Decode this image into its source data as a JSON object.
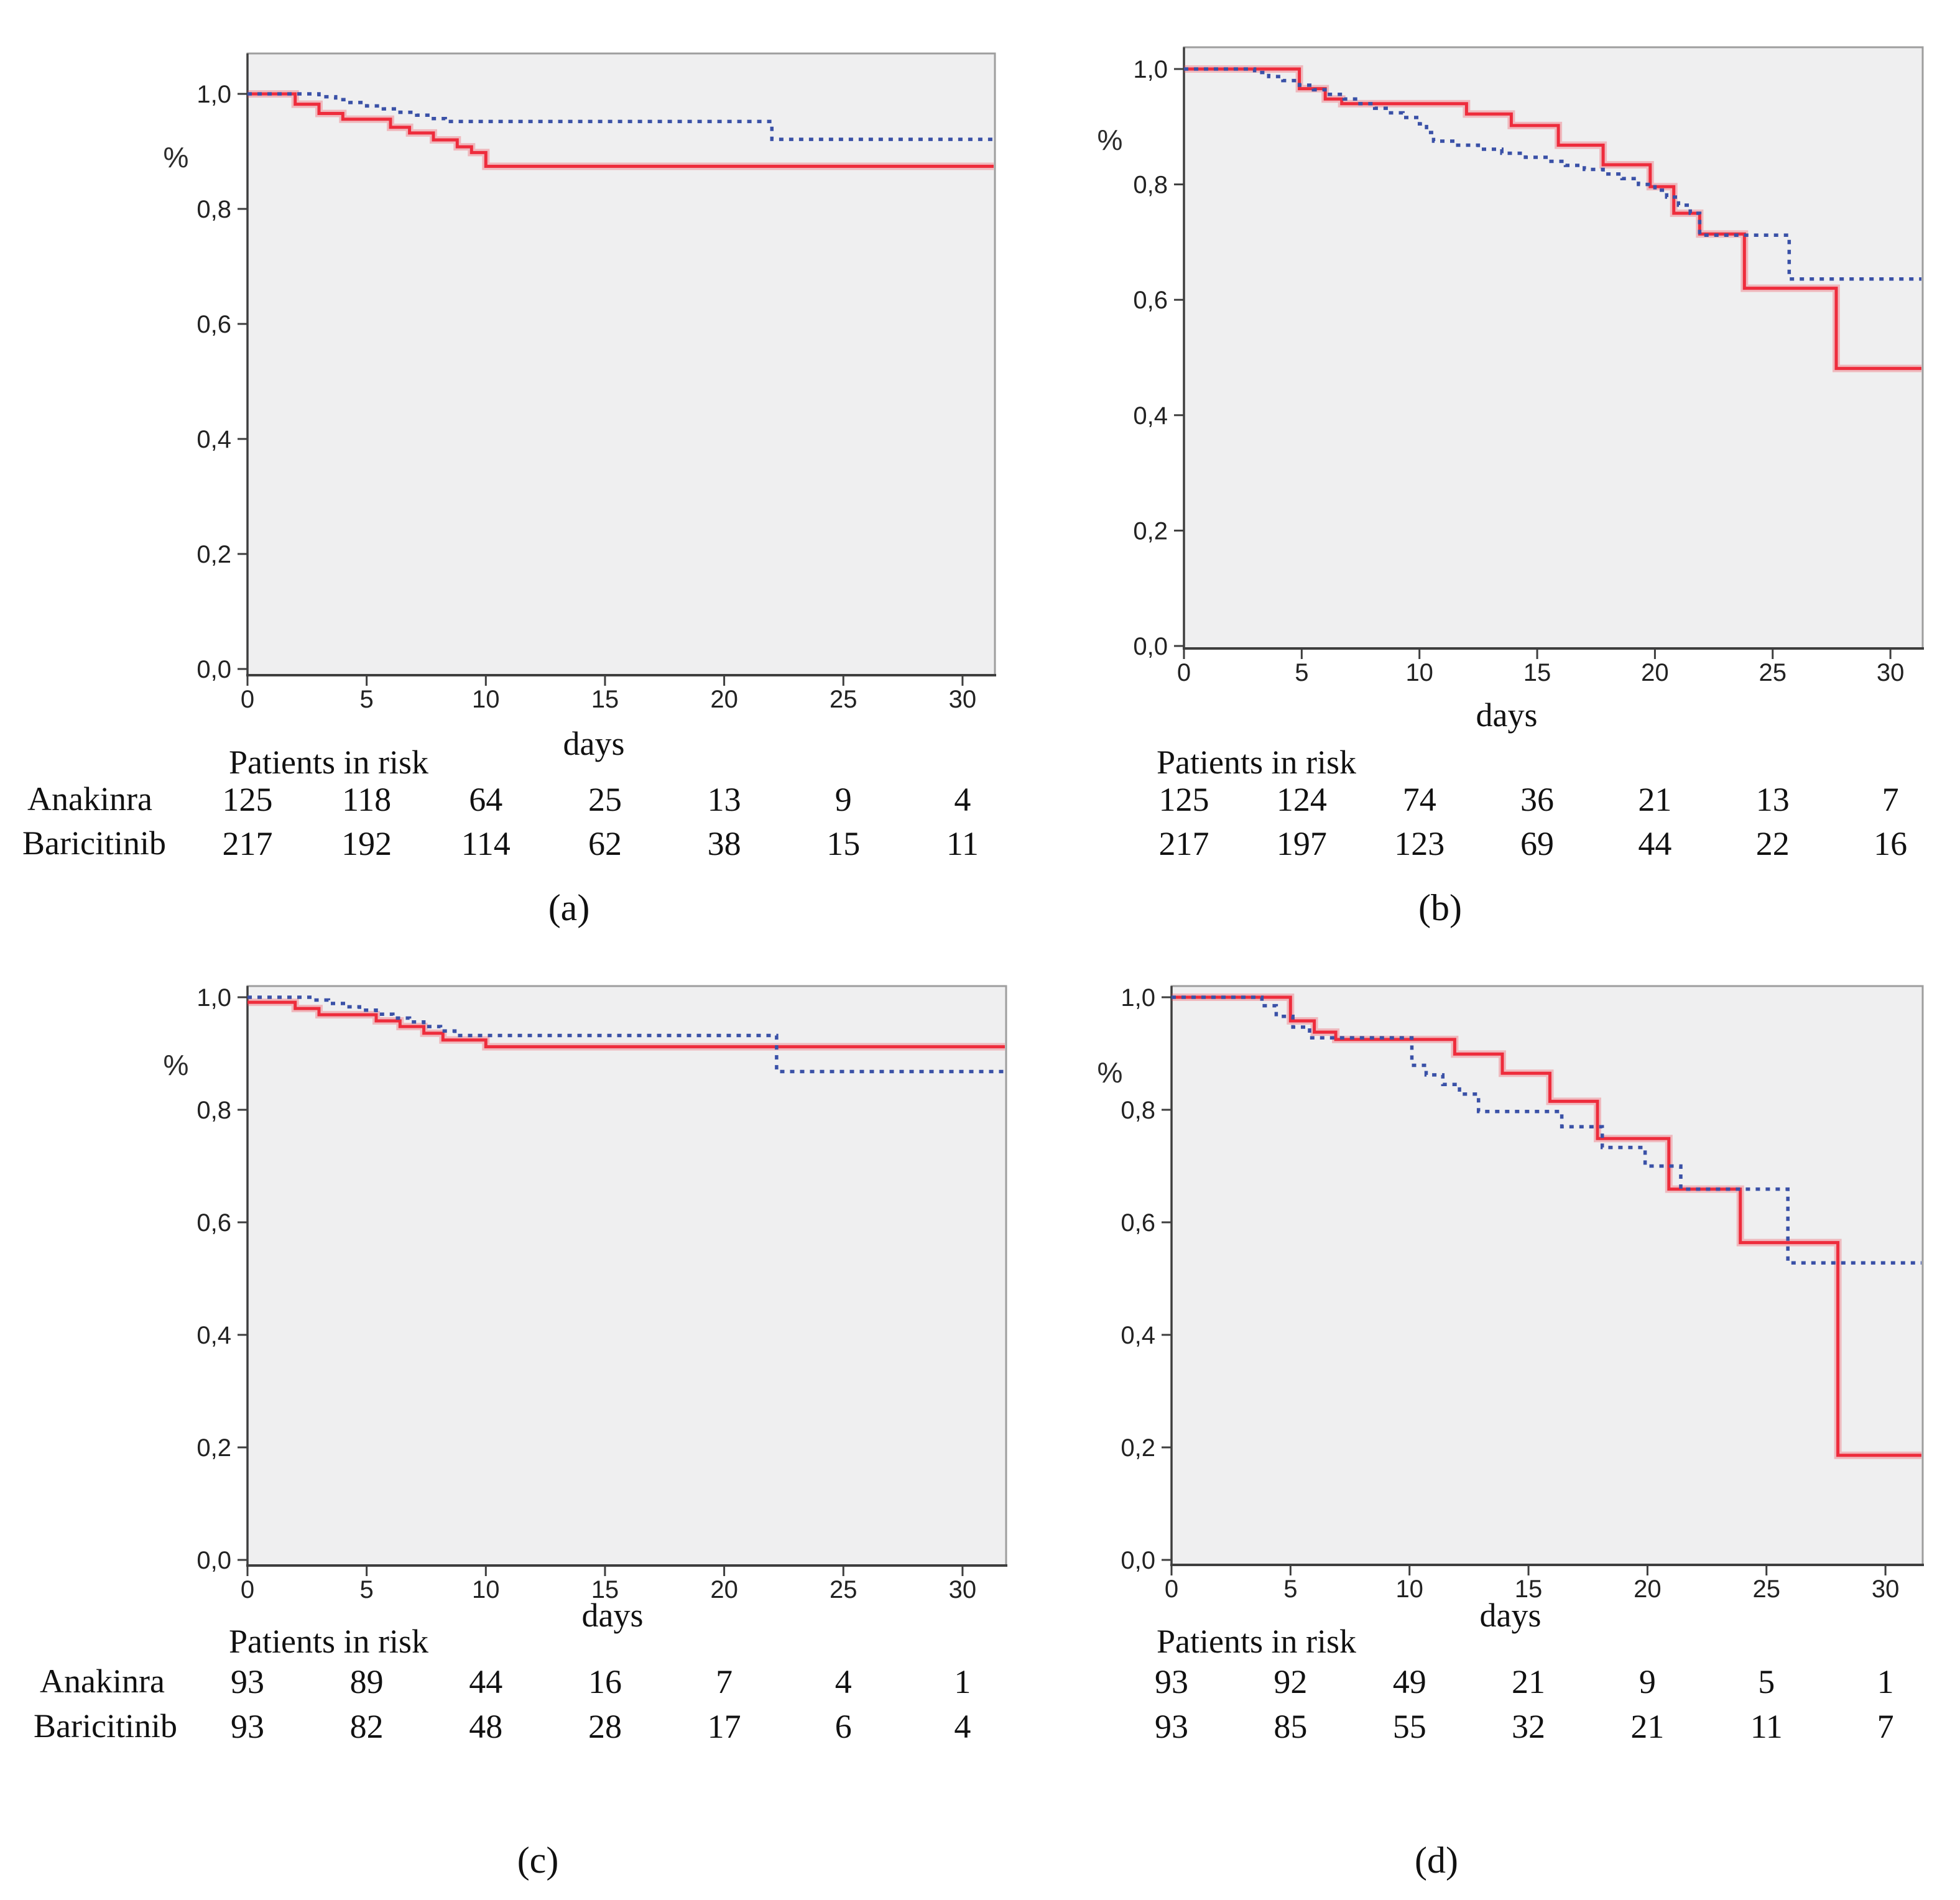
{
  "figure": {
    "ylabel": "%",
    "xlabel": "days",
    "risk_header": "Patients in risk",
    "row_labels": [
      "Anakinra",
      "Baricitinib"
    ],
    "y_ticks": [
      {
        "label": "1,0",
        "value": 1.0
      },
      {
        "label": "0,8",
        "value": 0.8
      },
      {
        "label": "0,6",
        "value": 0.6
      },
      {
        "label": "0,4",
        "value": 0.4
      },
      {
        "label": "0,2",
        "value": 0.2
      },
      {
        "label": "0,0",
        "value": 0.0
      }
    ],
    "x_ticks": [
      0,
      5,
      10,
      15,
      20,
      25,
      30
    ],
    "colors": {
      "anakinra": "#ee2c3c",
      "anakinra_halo": "rgba(238,60,76,0.30)",
      "baricitinib": "#3a51a7",
      "plot_bg": "#efeff0",
      "plot_border": "#9e9e9e",
      "axis": "#3e3e3e",
      "text": "#111111"
    }
  },
  "chart_data": [
    {
      "id": "a",
      "caption": "(a)",
      "type": "line",
      "subtype": "kaplan-meier-step",
      "xlabel": "days",
      "ylabel": "%",
      "xlim": [
        0,
        31.4
      ],
      "ylim": [
        0.0,
        1.05
      ],
      "series": [
        {
          "name": "Anakinra",
          "line": "solid",
          "color_key": "anakinra",
          "steps": [
            [
              0,
              1.0
            ],
            [
              2,
              0.982
            ],
            [
              3,
              0.966
            ],
            [
              4,
              0.956
            ],
            [
              6,
              0.942
            ],
            [
              6.8,
              0.932
            ],
            [
              7.8,
              0.92
            ],
            [
              8.8,
              0.908
            ],
            [
              9.4,
              0.898
            ],
            [
              10,
              0.874
            ]
          ]
        },
        {
          "name": "Baricitinib",
          "line": "dotted",
          "color_key": "baricitinib",
          "steps": [
            [
              0,
              1.0
            ],
            [
              3,
              0.995
            ],
            [
              3.7,
              0.99
            ],
            [
              4.3,
              0.985
            ],
            [
              5,
              0.979
            ],
            [
              5.7,
              0.974
            ],
            [
              6.4,
              0.968
            ],
            [
              7.1,
              0.963
            ],
            [
              7.7,
              0.957
            ],
            [
              8.3,
              0.952
            ],
            [
              22,
              0.921
            ]
          ]
        }
      ],
      "patients_in_risk": {
        "days": [
          0,
          5,
          10,
          15,
          20,
          25,
          30
        ],
        "rows": [
          {
            "label": "Anakinra",
            "values": [
              125,
              118,
              64,
              25,
              13,
              9,
              4
            ]
          },
          {
            "label": "Baricitinib",
            "values": [
              217,
              192,
              114,
              62,
              38,
              15,
              11
            ]
          }
        ]
      }
    },
    {
      "id": "b",
      "caption": "(b)",
      "type": "line",
      "subtype": "kaplan-meier-step",
      "xlabel": "days",
      "ylabel": "%",
      "xlim": [
        0,
        31.4
      ],
      "ylim": [
        0.0,
        1.05
      ],
      "series": [
        {
          "name": "Anakinra",
          "line": "solid",
          "color_key": "anakinra",
          "steps": [
            [
              0,
              1.0
            ],
            [
              4.9,
              0.966
            ],
            [
              6,
              0.948
            ],
            [
              6.7,
              0.94
            ],
            [
              12,
              0.922
            ],
            [
              13.9,
              0.902
            ],
            [
              15.9,
              0.868
            ],
            [
              17.8,
              0.834
            ],
            [
              19.8,
              0.796
            ],
            [
              20.8,
              0.75
            ],
            [
              21.9,
              0.714
            ],
            [
              23.8,
              0.62
            ],
            [
              27.7,
              0.481
            ]
          ]
        },
        {
          "name": "Baricitinib",
          "line": "dotted",
          "color_key": "baricitinib",
          "steps": [
            [
              0,
              1.0
            ],
            [
              3,
              0.994
            ],
            [
              3.6,
              0.987
            ],
            [
              4.2,
              0.98
            ],
            [
              4.9,
              0.972
            ],
            [
              5.5,
              0.964
            ],
            [
              6.1,
              0.956
            ],
            [
              6.8,
              0.948
            ],
            [
              7.4,
              0.94
            ],
            [
              8.1,
              0.932
            ],
            [
              8.7,
              0.924
            ],
            [
              9.3,
              0.916
            ],
            [
              10,
              0.905
            ],
            [
              10.3,
              0.89
            ],
            [
              10.6,
              0.875
            ],
            [
              11.5,
              0.868
            ],
            [
              12.5,
              0.861
            ],
            [
              13.5,
              0.854
            ],
            [
              14.5,
              0.847
            ],
            [
              15.5,
              0.84
            ],
            [
              16.2,
              0.833
            ],
            [
              17,
              0.826
            ],
            [
              17.8,
              0.818
            ],
            [
              18.6,
              0.81
            ],
            [
              19.3,
              0.8
            ],
            [
              20,
              0.79
            ],
            [
              20.5,
              0.778
            ],
            [
              21,
              0.764
            ],
            [
              21.5,
              0.75
            ],
            [
              21.9,
              0.712
            ],
            [
              25.7,
              0.636
            ]
          ]
        }
      ],
      "patients_in_risk": {
        "days": [
          0,
          5,
          10,
          15,
          20,
          25,
          30
        ],
        "rows": [
          {
            "label": "Anakinra",
            "values": [
              125,
              124,
              74,
              36,
              21,
              13,
              7
            ]
          },
          {
            "label": "Baricitinib",
            "values": [
              217,
              197,
              123,
              69,
              44,
              22,
              16
            ]
          }
        ]
      }
    },
    {
      "id": "c",
      "caption": "(c)",
      "type": "line",
      "subtype": "kaplan-meier-step",
      "xlabel": "days",
      "ylabel": "%",
      "xlim": [
        0,
        31.6
      ],
      "ylim": [
        0.0,
        1.05
      ],
      "series": [
        {
          "name": "Anakinra",
          "line": "solid",
          "color_key": "anakinra",
          "steps": [
            [
              0,
              0.991
            ],
            [
              2,
              0.98
            ],
            [
              3,
              0.969
            ],
            [
              5.4,
              0.958
            ],
            [
              6.4,
              0.948
            ],
            [
              7.4,
              0.936
            ],
            [
              8.2,
              0.924
            ],
            [
              10,
              0.912
            ]
          ]
        },
        {
          "name": "Baricitinib",
          "line": "dotted",
          "color_key": "baricitinib",
          "steps": [
            [
              0,
              1.0
            ],
            [
              2.8,
              0.995
            ],
            [
              3.4,
              0.989
            ],
            [
              4.1,
              0.983
            ],
            [
              4.7,
              0.977
            ],
            [
              5.4,
              0.97
            ],
            [
              6.1,
              0.963
            ],
            [
              6.8,
              0.956
            ],
            [
              7.4,
              0.948
            ],
            [
              8.1,
              0.94
            ],
            [
              8.7,
              0.932
            ],
            [
              22.2,
              0.868
            ]
          ]
        }
      ],
      "patients_in_risk": {
        "days": [
          0,
          5,
          10,
          15,
          20,
          25,
          30
        ],
        "rows": [
          {
            "label": "Anakinra",
            "values": [
              93,
              89,
              44,
              16,
              7,
              4,
              1
            ]
          },
          {
            "label": "Baricitinib",
            "values": [
              93,
              82,
              48,
              28,
              17,
              6,
              4
            ]
          }
        ]
      }
    },
    {
      "id": "d",
      "caption": "(d)",
      "type": "line",
      "subtype": "kaplan-meier-step",
      "xlabel": "days",
      "ylabel": "%",
      "xlim": [
        0,
        31.6
      ],
      "ylim": [
        0.0,
        1.05
      ],
      "series": [
        {
          "name": "Anakinra",
          "line": "solid",
          "color_key": "anakinra",
          "steps": [
            [
              0,
              1.0
            ],
            [
              5,
              0.958
            ],
            [
              6,
              0.938
            ],
            [
              6.9,
              0.925
            ],
            [
              11.9,
              0.899
            ],
            [
              13.9,
              0.865
            ],
            [
              15.9,
              0.815
            ],
            [
              17.9,
              0.749
            ],
            [
              20.9,
              0.659
            ],
            [
              23.9,
              0.564
            ],
            [
              28,
              0.186
            ]
          ]
        },
        {
          "name": "Baricitinib",
          "line": "dotted",
          "color_key": "baricitinib",
          "steps": [
            [
              0,
              1.0
            ],
            [
              3.8,
              0.985
            ],
            [
              4.4,
              0.966
            ],
            [
              5.1,
              0.947
            ],
            [
              5.8,
              0.928
            ],
            [
              10.1,
              0.879
            ],
            [
              10.7,
              0.862
            ],
            [
              11.4,
              0.845
            ],
            [
              12.1,
              0.828
            ],
            [
              12.9,
              0.797
            ],
            [
              16.4,
              0.77
            ],
            [
              18.1,
              0.733
            ],
            [
              19.9,
              0.7
            ],
            [
              21.4,
              0.659
            ],
            [
              25.9,
              0.528
            ]
          ]
        }
      ],
      "patients_in_risk": {
        "days": [
          0,
          5,
          10,
          15,
          20,
          25,
          30
        ],
        "rows": [
          {
            "label": "Anakinra",
            "values": [
              93,
              92,
              49,
              21,
              9,
              5,
              1
            ]
          },
          {
            "label": "Baricitinib",
            "values": [
              93,
              85,
              55,
              32,
              21,
              11,
              7
            ]
          }
        ]
      }
    }
  ]
}
